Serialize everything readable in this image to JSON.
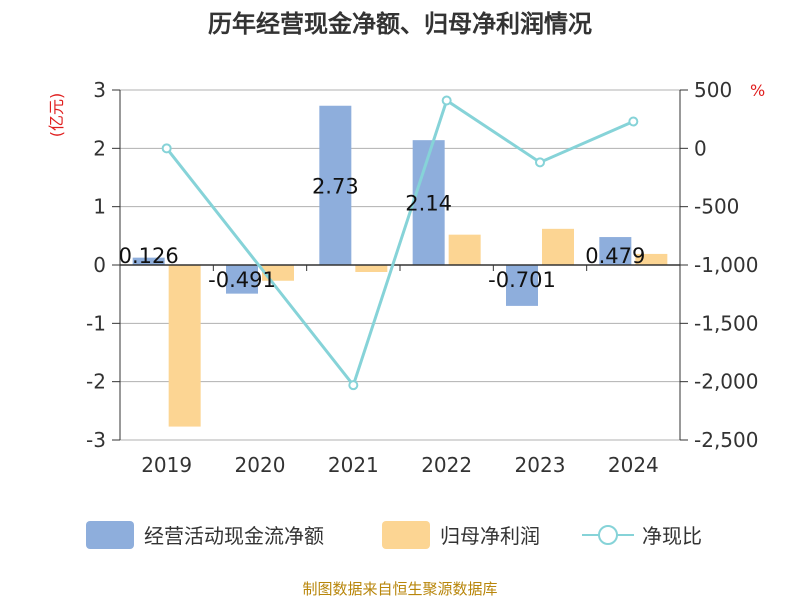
{
  "colors": {
    "bar1": "#8eaedc",
    "bar2": "#fcd593",
    "line": "#86d3d8",
    "grid": "#b0b0b0",
    "axis": "#333333",
    "unit": "#e02020",
    "source": "#b8860b"
  },
  "chart_data": {
    "type": "bar+line",
    "title": "历年经营现金净额、归母净利润情况",
    "categories": [
      "2019",
      "2020",
      "2021",
      "2022",
      "2023",
      "2024"
    ],
    "left_axis": {
      "unit": "(亿元)",
      "range": [
        -3,
        3
      ],
      "ticks": [
        "3",
        "2",
        "1",
        "0",
        "-1",
        "-2",
        "-3"
      ]
    },
    "right_axis": {
      "unit": "%",
      "range": [
        -2500,
        500
      ],
      "ticks": [
        "500",
        "0",
        "-500",
        "-1,000",
        "-1,500",
        "-2,000",
        "-2,500"
      ]
    },
    "series": [
      {
        "name": "经营活动现金流净额",
        "kind": "bar",
        "axis": "left",
        "values": [
          0.126,
          -0.491,
          2.73,
          2.14,
          -0.701,
          0.479
        ],
        "labels": [
          "0.126",
          "-0.491",
          "2.73",
          "2.14",
          "-0.701",
          "0.479"
        ]
      },
      {
        "name": "归母净利润",
        "kind": "bar",
        "axis": "left",
        "values": [
          -2.77,
          -0.27,
          -0.12,
          0.52,
          0.62,
          0.19
        ]
      },
      {
        "name": "净现比",
        "kind": "line",
        "axis": "right",
        "values": [
          0,
          null,
          -2030,
          410,
          -120,
          230
        ]
      }
    ],
    "grid": true,
    "legend_position": "bottom"
  },
  "footer": {
    "source": "制图数据来自恒生聚源数据库"
  }
}
